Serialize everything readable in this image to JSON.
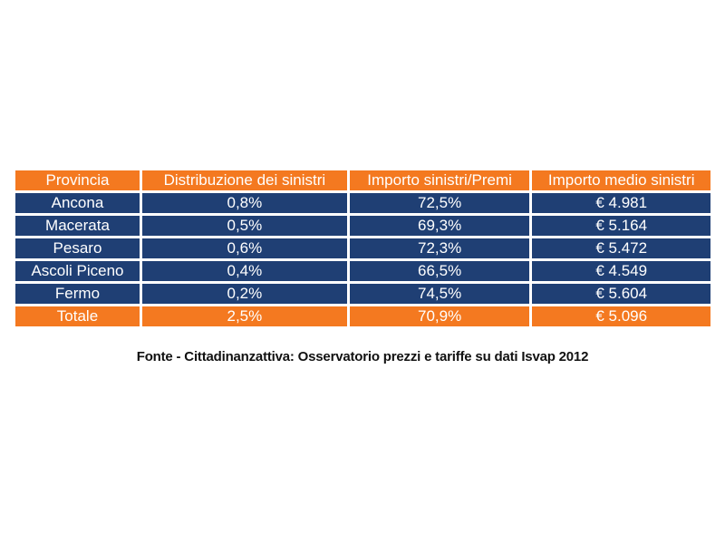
{
  "table": {
    "headers": [
      "Provincia",
      "Distribuzione dei sinistri",
      "Importo sinistri/Premi",
      "Importo medio sinistri"
    ],
    "rows": [
      [
        "Ancona",
        "0,8%",
        "72,5%",
        "€ 4.981"
      ],
      [
        "Macerata",
        "0,5%",
        "69,3%",
        "€ 5.164"
      ],
      [
        "Pesaro",
        "0,6%",
        "72,3%",
        "€ 5.472"
      ],
      [
        "Ascoli Piceno",
        "0,4%",
        "66,5%",
        "€ 4.549"
      ],
      [
        "Fermo",
        "0,2%",
        "74,5%",
        "€ 5.604"
      ]
    ],
    "total": [
      "Totale",
      "2,5%",
      "70,9%",
      "€ 5.096"
    ]
  },
  "source": "Fonte - Cittadinanzattiva: Osservatorio prezzi e tariffe su dati Isvap 2012",
  "colors": {
    "header_bg": "#f47920",
    "row_bg": "#1f3f74",
    "text": "#ffffff"
  }
}
